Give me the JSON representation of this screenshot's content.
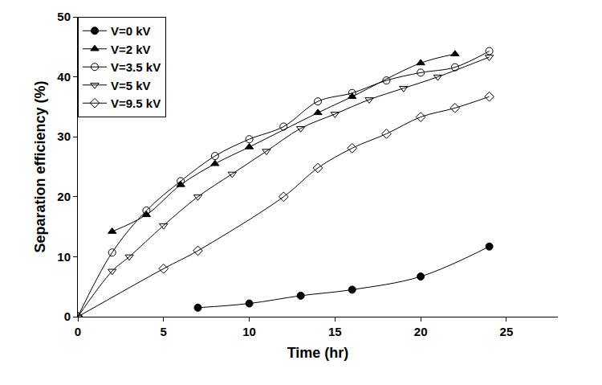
{
  "chart_data": {
    "type": "line",
    "x_label": "Time (hr)",
    "y_label": "Separation efficiency (%)",
    "xlim": [
      0,
      28
    ],
    "xticks": [
      0,
      5,
      10,
      15,
      20,
      25
    ],
    "ylim": [
      0,
      50
    ],
    "yticks": [
      0,
      10,
      20,
      30,
      40,
      50
    ],
    "grid": false,
    "legend": "upper left",
    "series": [
      {
        "name": "V=0 kV",
        "color": "#000000",
        "marker": "circle",
        "line_style": "solid",
        "x": [
          7,
          10,
          13,
          16,
          20,
          24
        ],
        "values": [
          1.5,
          2.2,
          3.5,
          4.5,
          6.7,
          11.7
        ]
      },
      {
        "name": "V=2 kV",
        "color": "#000000",
        "marker": "triangle-up",
        "line_style": "solid",
        "x": [
          2,
          4,
          6,
          8,
          10,
          14,
          16,
          20,
          22
        ],
        "values": [
          14.2,
          17.0,
          22.0,
          25.5,
          28.3,
          34.0,
          36.7,
          42.3,
          43.8
        ]
      },
      {
        "name": "V=3.5 kV",
        "color": "#000000",
        "marker": "circle-open",
        "line_style": "solid",
        "x": [
          0,
          2,
          4,
          6,
          8,
          10,
          12,
          14,
          16,
          18,
          20,
          22,
          24
        ],
        "values": [
          0,
          10.7,
          17.7,
          22.6,
          26.8,
          29.6,
          31.7,
          35.9,
          37.3,
          39.4,
          40.7,
          41.6,
          44.3
        ]
      },
      {
        "name": "V=5 kV",
        "color": "#000000",
        "marker": "triangle-down-open",
        "line_style": "solid",
        "x": [
          0,
          2,
          3,
          5,
          7,
          9,
          11,
          13,
          15,
          17,
          19,
          21,
          24
        ],
        "values": [
          0,
          7.6,
          10.0,
          15.2,
          20.0,
          23.8,
          27.6,
          31.4,
          33.8,
          36.2,
          38.1,
          40.0,
          43.3
        ]
      },
      {
        "name": "V=9.5 kV",
        "color": "#000000",
        "marker": "diamond-open",
        "line_style": "solid",
        "x": [
          0,
          5,
          7,
          12,
          14,
          16,
          18,
          20,
          22,
          24
        ],
        "values": [
          0,
          8.0,
          11.0,
          20.0,
          24.8,
          28.1,
          30.5,
          33.3,
          34.8,
          36.7
        ]
      }
    ]
  }
}
